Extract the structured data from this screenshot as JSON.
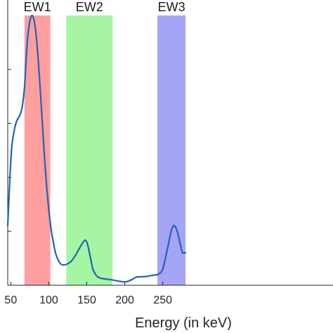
{
  "chart_data": {
    "type": "area",
    "title": "",
    "xlabel": "Energy (in keV)",
    "ylabel": "",
    "xlim": [
      46,
      474
    ],
    "ylim": [
      0,
      1.0
    ],
    "grid": false,
    "x_ticks": [
      "50",
      "100",
      "150",
      "200",
      "250"
    ],
    "y_ticks": [
      "",
      "",
      "",
      ""
    ],
    "energy_windows": [
      {
        "label": "EW1",
        "range": [
          68,
          102
        ],
        "color": "#ff9f9f"
      },
      {
        "label": "EW2",
        "range": [
          123,
          184
        ],
        "color": "#a6f5a2"
      },
      {
        "label": "EW3",
        "range": [
          243,
          280
        ],
        "color": "#a5a5f5"
      }
    ],
    "series": [
      {
        "color": "#1f63b8",
        "x": [
          46,
          48,
          50,
          52,
          55,
          58,
          62,
          65,
          68,
          70,
          72,
          74,
          76,
          78,
          80,
          82,
          84,
          86,
          88,
          90,
          92,
          94,
          96,
          98,
          100,
          102,
          104,
          106,
          108,
          110,
          113,
          116,
          120,
          125,
          130,
          135,
          140,
          143,
          146,
          148,
          150,
          152,
          155,
          158,
          162,
          165,
          170,
          175,
          180,
          185,
          190,
          195,
          200,
          205,
          210,
          215,
          220,
          225,
          230,
          235,
          240,
          245,
          250,
          255,
          258,
          261,
          264,
          267,
          270,
          272,
          274,
          276,
          278,
          280
        ],
        "y": [
          0.22,
          0.35,
          0.46,
          0.53,
          0.58,
          0.61,
          0.63,
          0.66,
          0.73,
          0.83,
          0.91,
          0.96,
          0.99,
          1.0,
          0.99,
          0.96,
          0.91,
          0.84,
          0.76,
          0.67,
          0.58,
          0.49,
          0.41,
          0.34,
          0.28,
          0.23,
          0.19,
          0.16,
          0.13,
          0.11,
          0.09,
          0.078,
          0.075,
          0.08,
          0.09,
          0.11,
          0.135,
          0.15,
          0.163,
          0.167,
          0.16,
          0.14,
          0.1,
          0.06,
          0.038,
          0.03,
          0.025,
          0.023,
          0.021,
          0.019,
          0.016,
          0.014,
          0.012,
          0.015,
          0.022,
          0.03,
          0.031,
          0.032,
          0.033,
          0.036,
          0.038,
          0.042,
          0.06,
          0.12,
          0.16,
          0.2,
          0.22,
          0.215,
          0.19,
          0.165,
          0.14,
          0.12,
          0.12,
          0.12
        ]
      }
    ]
  }
}
